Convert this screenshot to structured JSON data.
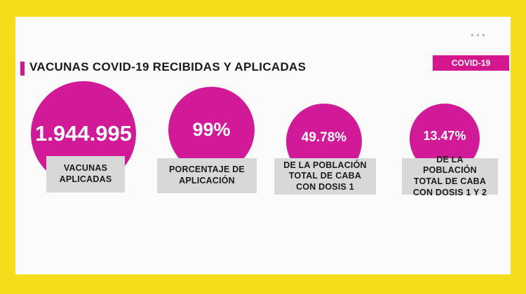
{
  "header": {
    "title": "VACUNAS COVID-19 RECIBIDAS Y APLICADAS",
    "badge": "COVID-19",
    "menu_dots": "•••"
  },
  "stats": [
    {
      "value": "1.944.995",
      "label": "VACUNAS APLICADAS"
    },
    {
      "value": "99%",
      "label": "PORCENTAJE DE APLICACIÓN"
    },
    {
      "value": "49.78%",
      "label": "DE LA POBLACIÓN TOTAL DE CABA CON DOSIS 1"
    },
    {
      "value": "13.47%",
      "label": "DE LA POBLACIÓN TOTAL DE CABA CON DOSIS 1 Y 2"
    }
  ],
  "colors": {
    "frame": "#f6dd1b",
    "accent": "#d21a98",
    "label_bg": "#d8d8d8"
  }
}
